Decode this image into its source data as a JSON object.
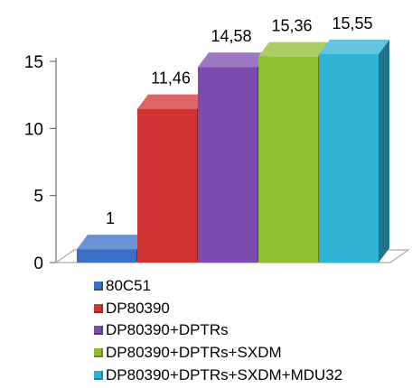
{
  "chart_data": {
    "type": "bar",
    "style": "3d",
    "categories": [
      "80C51",
      "DP80390",
      "DP80390+DPTRs",
      "DP80390+DPTRs+SXDM",
      "DP80390+DPTRs+SXDM+MDU32"
    ],
    "values": [
      1,
      11.46,
      14.58,
      15.36,
      15.55
    ],
    "data_labels": [
      "1",
      "11,46",
      "14,58",
      "15,36",
      "15,55"
    ],
    "colors": [
      "#3a6fc4",
      "#d33232",
      "#7b4bb0",
      "#8fbe2f",
      "#2fb3d6"
    ],
    "ylim": [
      0,
      15.5
    ],
    "yticks": [
      "0",
      "5",
      "10",
      "15"
    ],
    "ytick_values": [
      0,
      5,
      10,
      15
    ],
    "legend": "bottom",
    "grid": false
  }
}
